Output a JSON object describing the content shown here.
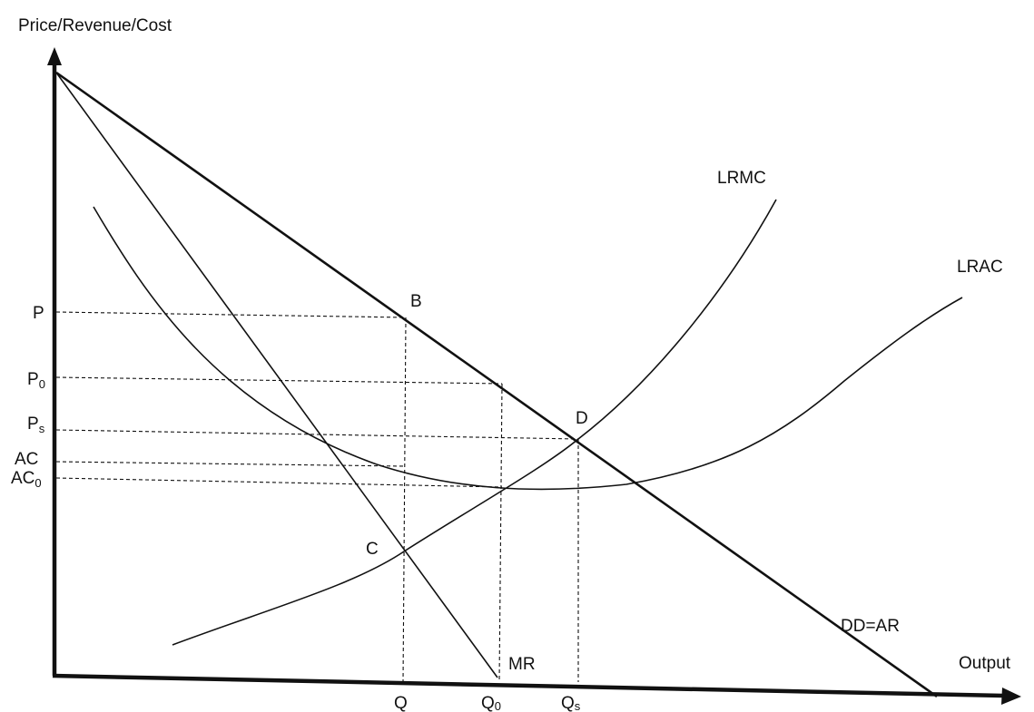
{
  "axes": {
    "y_title": "Price/Revenue/Cost",
    "x_title": "Output"
  },
  "curves": {
    "demand": "DD=AR",
    "marginal_revenue": "MR",
    "lrmc": "LRMC",
    "lrac": "LRAC"
  },
  "y_ticks": {
    "p": "P",
    "p0_base": "P",
    "p0_sub": "0",
    "ps_base": "P",
    "ps_sub": "s",
    "ac": "AC",
    "ac0_base": "AC",
    "ac0_sub": "0"
  },
  "x_ticks": {
    "q": "Q",
    "q0_base": "Q",
    "q0_sub": "0",
    "qs_base": "Q",
    "qs_sub": "s"
  },
  "points": {
    "b": "B",
    "c": "C",
    "d": "D"
  }
}
